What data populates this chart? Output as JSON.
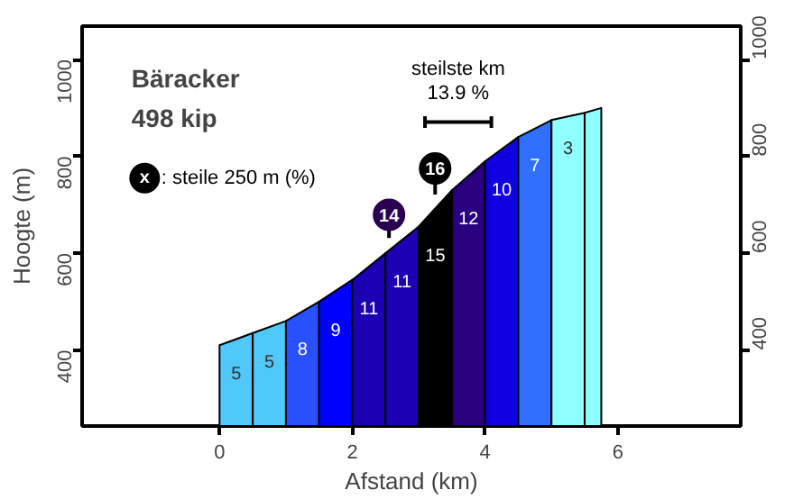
{
  "chart_data": {
    "type": "area",
    "title": "Bäracker",
    "subtitle": "498 kip",
    "xlabel": "Afstand (km)",
    "ylabel": "Hoogte (m)",
    "series": [
      {
        "x": [
          0,
          0.5
        ],
        "values": [
          410,
          435
        ],
        "color": "#50c8fa"
      },
      {
        "x": [
          0.5,
          1
        ],
        "values": [
          435,
          460
        ],
        "color": "#50c8fa"
      },
      {
        "x": [
          1,
          1.5
        ],
        "values": [
          460,
          500
        ],
        "color": "#2850ff"
      },
      {
        "x": [
          1.5,
          2
        ],
        "values": [
          500,
          545
        ],
        "color": "#0000ff"
      },
      {
        "x": [
          2,
          2.5
        ],
        "values": [
          545,
          600
        ],
        "color": "#1c00b4"
      },
      {
        "x": [
          2.5,
          3
        ],
        "values": [
          600,
          655
        ],
        "color": "#1c00b4"
      },
      {
        "x": [
          3,
          3.5
        ],
        "values": [
          655,
          730
        ],
        "color": "#000000"
      },
      {
        "x": [
          3.5,
          4
        ],
        "values": [
          730,
          790
        ],
        "color": "#280080"
      },
      {
        "x": [
          4,
          4.5
        ],
        "values": [
          790,
          840
        ],
        "color": "#1000e0"
      },
      {
        "x": [
          4.5,
          5
        ],
        "values": [
          840,
          875
        ],
        "color": "#3070ff"
      },
      {
        "x": [
          5,
          5.5
        ],
        "values": [
          875,
          890
        ],
        "color": "#90ffff"
      },
      {
        "x": [
          5.5,
          5.75
        ],
        "values": [
          890,
          900
        ],
        "color": "#90ffff"
      }
    ],
    "annotations": [
      "5",
      "5",
      "8",
      "9",
      "11",
      "11",
      "15",
      "12",
      "10",
      "7",
      "3",
      "14",
      "16",
      "steilste km",
      "13.9 %",
      "x : steile 250 m (%)"
    ],
    "xlim": [
      -2.07,
      7.85
    ],
    "ylim": [
      243,
      1069
    ],
    "xticks": [
      0,
      2,
      4,
      6
    ],
    "yticks": [
      400,
      600,
      800,
      1000
    ],
    "y2lim": [
      243,
      1069
    ],
    "y2ticks": [
      400,
      600,
      800,
      1000
    ],
    "grid": false
  }
}
